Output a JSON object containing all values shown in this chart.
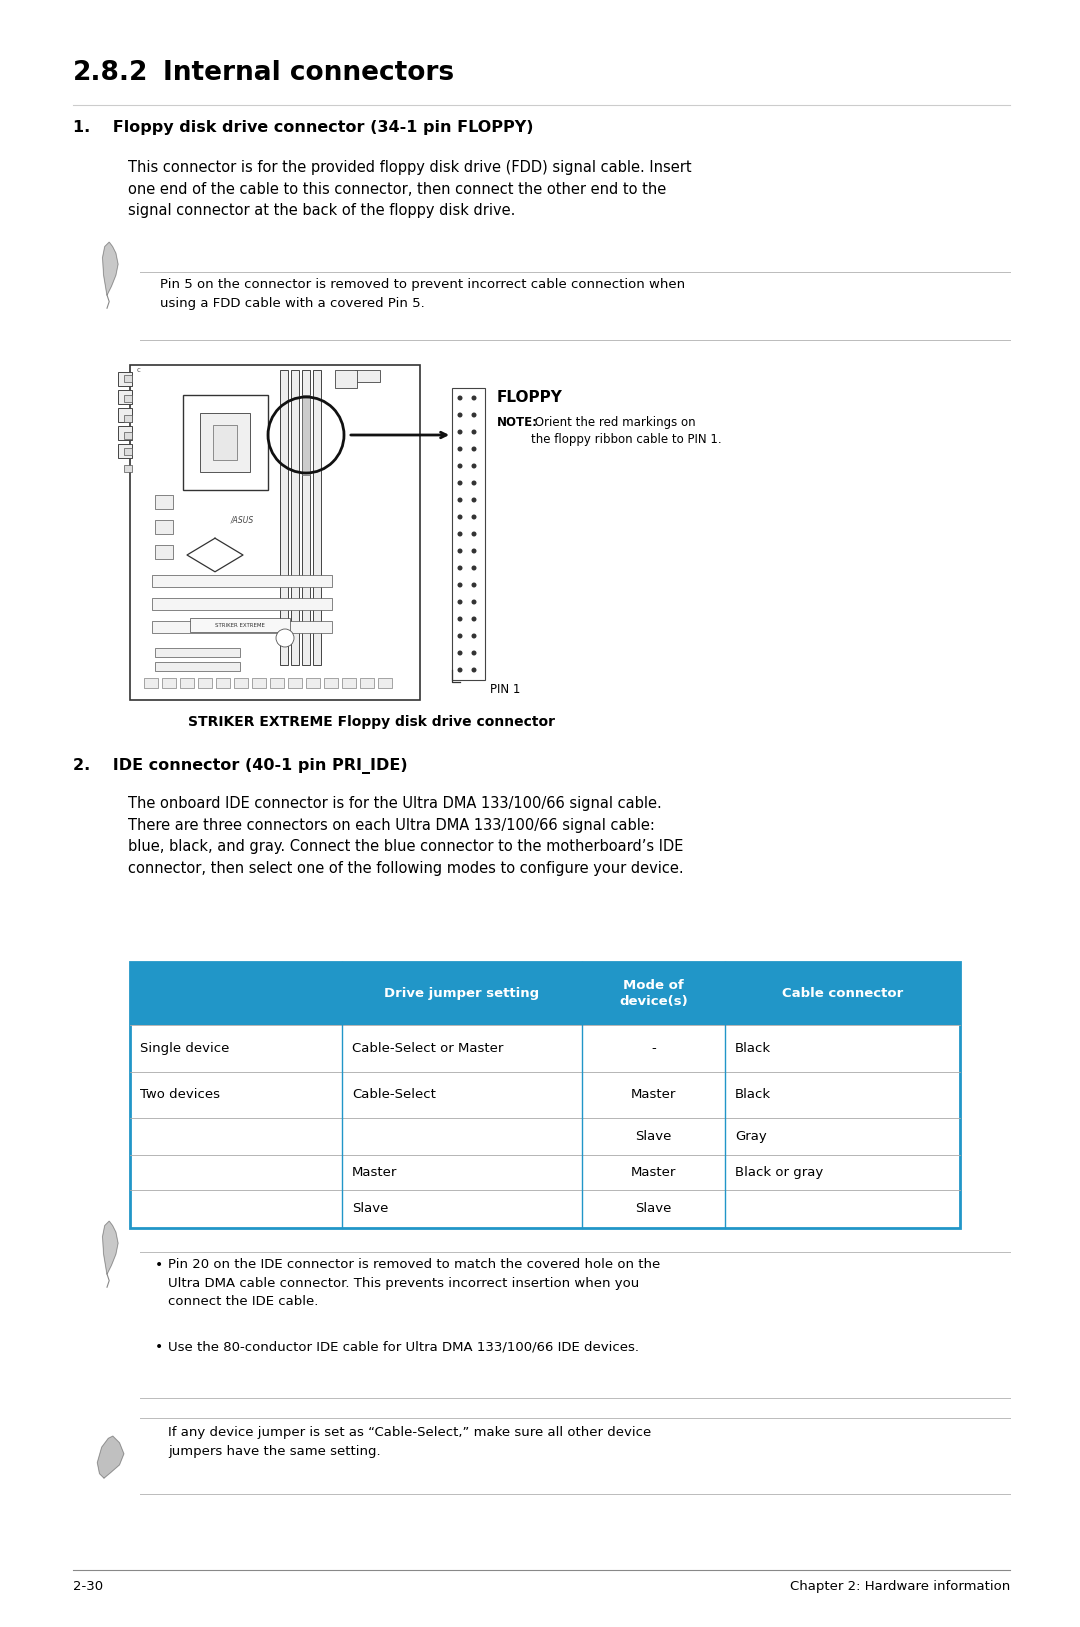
{
  "title_num": "2.8.2",
  "title_text": "Internal connectors",
  "s1_heading": "1.    Floppy disk drive connector (34-1 pin FLOPPY)",
  "s1_body": "This connector is for the provided floppy disk drive (FDD) signal cable. Insert\none end of the cable to this connector, then connect the other end to the\nsignal connector at the back of the floppy disk drive.",
  "note1_text": "Pin 5 on the connector is removed to prevent incorrect cable connection when\nusing a FDD cable with a covered Pin 5.",
  "fig1_caption": "STRIKER EXTREME Floppy disk drive connector",
  "floppy_label": "FLOPPY",
  "floppy_note_bold": "NOTE:",
  "floppy_note_rest": " Orient the red markings on\nthe floppy ribbon cable to PIN 1.",
  "pin1_label": "PIN 1",
  "s2_heading": "2.    IDE connector (40-1 pin PRI_IDE)",
  "s2_body": "The onboard IDE connector is for the Ultra DMA 133/100/66 signal cable.\nThere are three connectors on each Ultra DMA 133/100/66 signal cable:\nblue, black, and gray. Connect the blue connector to the motherboard’s IDE\nconnector, then select one of the following modes to configure your device.",
  "tbl_header": [
    "",
    "Drive jumper setting",
    "Mode of\ndevice(s)",
    "Cable connector"
  ],
  "tbl_rows": [
    [
      "Single device",
      "Cable-Select or Master",
      "-",
      "Black"
    ],
    [
      "Two devices",
      "Cable-Select",
      "Master",
      "Black"
    ],
    [
      "",
      "",
      "Slave",
      "Gray"
    ],
    [
      "",
      "Master",
      "Master",
      "Black or gray"
    ],
    [
      "",
      "Slave",
      "Slave",
      ""
    ]
  ],
  "note2_b1": "Pin 20 on the IDE connector is removed to match the covered hole on the\nUltra DMA cable connector. This prevents incorrect insertion when you\nconnect the IDE cable.",
  "note2_b2": "Use the 80-conductor IDE cable for Ultra DMA 133/100/66 IDE devices.",
  "note3_text": "If any device jumper is set as “Cable-Select,” make sure all other device\njumpers have the same setting.",
  "footer_left": "2-30",
  "footer_right": "Chapter 2: Hardware information",
  "bg": "#ffffff",
  "tbl_hdr_bg": "#2196c8",
  "tbl_hdr_fg": "#ffffff",
  "tbl_border": "#2196c8",
  "tbl_line": "#aaaaaa",
  "rule_color": "#cccccc",
  "note_rule": "#bbbbbb"
}
